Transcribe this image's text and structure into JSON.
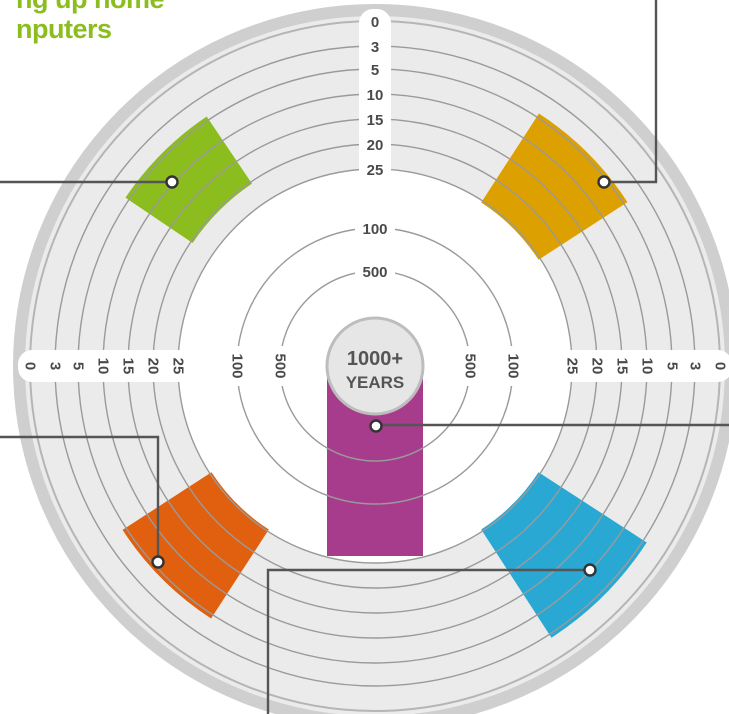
{
  "title_lines": [
    "ng up home",
    "nputers"
  ],
  "ring_scale": {
    "labels": [
      "0",
      "3",
      "5",
      "10",
      "15",
      "20",
      "25",
      "100",
      "500"
    ],
    "center_top": "1000+",
    "center_bottom": "YEARS"
  },
  "colors": {
    "title_green": "#8cbd1f",
    "outer_rim": "#cfcfcf",
    "band_fill": "#ebebeb",
    "ring_line": "#9a9a9a",
    "segment_green": "#8cbd1f",
    "segment_gold": "#dca000",
    "segment_orange": "#e06010",
    "segment_blue": "#2aa8d4",
    "segment_purple": "#a83c8c",
    "leader_line": "#555555"
  },
  "segments": [
    {
      "name": "green",
      "ring_from": "20",
      "ring_to": "5",
      "angle_deg": 135,
      "color": "#8cbd1f"
    },
    {
      "name": "gold",
      "ring_from": "25",
      "ring_to": "5",
      "angle_deg": 45,
      "color": "#dca000"
    },
    {
      "name": "orange",
      "ring_from": "25",
      "ring_to": "5",
      "angle_deg": 225,
      "color": "#e06010"
    },
    {
      "name": "blue",
      "ring_from": "25",
      "ring_to": "3",
      "angle_deg": 315,
      "color": "#2aa8d4"
    },
    {
      "name": "purple",
      "ring_from": "1000+",
      "ring_to": "25",
      "angle_deg": 270,
      "color": "#a83c8c"
    }
  ]
}
